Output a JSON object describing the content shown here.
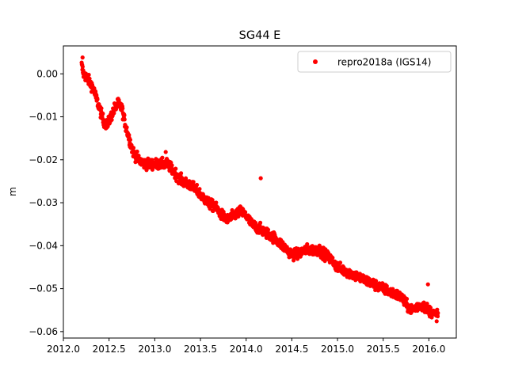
{
  "chart_data": {
    "type": "scatter",
    "title": "SG44 E",
    "xlabel": "",
    "ylabel": "m",
    "xlim": [
      2012.0,
      2016.3
    ],
    "ylim": [
      -0.0615,
      0.0065
    ],
    "xticks": [
      "2012.0",
      "2012.5",
      "2013.0",
      "2013.5",
      "2014.0",
      "2014.5",
      "2015.0",
      "2015.5",
      "2016.0"
    ],
    "xtick_values": [
      2012.0,
      2012.5,
      2013.0,
      2013.5,
      2014.0,
      2014.5,
      2015.0,
      2015.5,
      2016.0
    ],
    "yticks": [
      "0.00",
      "−0.01",
      "−0.02",
      "−0.03",
      "−0.04",
      "−0.05",
      "−0.06"
    ],
    "ytick_values": [
      0.0,
      -0.01,
      -0.02,
      -0.03,
      -0.04,
      -0.05,
      -0.06
    ],
    "grid": false,
    "legend_position": "top-right",
    "series": [
      {
        "name": "repro2018a (IGS14)",
        "color": "#ff0000",
        "marker": "circle",
        "trend_x": [
          2012.2,
          2012.22,
          2012.26,
          2012.32,
          2012.38,
          2012.44,
          2012.48,
          2012.52,
          2012.56,
          2012.6,
          2012.64,
          2012.68,
          2012.72,
          2012.76,
          2012.82,
          2012.9,
          2013.0,
          2013.08,
          2013.14,
          2013.22,
          2013.3,
          2013.4,
          2013.5,
          2013.58,
          2013.66,
          2013.74,
          2013.8,
          2013.86,
          2013.94,
          2014.0,
          2014.06,
          2014.14,
          2014.22,
          2014.3,
          2014.4,
          2014.5,
          2014.56,
          2014.64,
          2014.72,
          2014.8,
          2014.86,
          2014.92,
          2015.0,
          2015.1,
          2015.2,
          2015.3,
          2015.4,
          2015.5,
          2015.6,
          2015.7,
          2015.76,
          2015.82,
          2015.88,
          2015.94,
          2016.0,
          2016.06,
          2016.1
        ],
        "trend_y": [
          0.002,
          0.0,
          -0.001,
          -0.003,
          -0.007,
          -0.011,
          -0.012,
          -0.01,
          -0.008,
          -0.007,
          -0.008,
          -0.012,
          -0.015,
          -0.018,
          -0.02,
          -0.021,
          -0.021,
          -0.021,
          -0.021,
          -0.023,
          -0.025,
          -0.026,
          -0.028,
          -0.03,
          -0.031,
          -0.033,
          -0.034,
          -0.033,
          -0.032,
          -0.033,
          -0.035,
          -0.036,
          -0.037,
          -0.038,
          -0.04,
          -0.042,
          -0.042,
          -0.041,
          -0.041,
          -0.041,
          -0.042,
          -0.043,
          -0.045,
          -0.046,
          -0.047,
          -0.048,
          -0.049,
          -0.05,
          -0.051,
          -0.052,
          -0.054,
          -0.055,
          -0.054,
          -0.054,
          -0.055,
          -0.056,
          -0.056
        ],
        "noise_amplitude": 0.0012,
        "sample_step_years": 0.0027,
        "outliers": [
          {
            "x": 2014.16,
            "y": -0.0243
          },
          {
            "x": 2015.99,
            "y": -0.049
          },
          {
            "x": 2013.12,
            "y": -0.0182
          },
          {
            "x": 2012.6,
            "y": -0.0058
          },
          {
            "x": 2012.21,
            "y": 0.0038
          }
        ]
      }
    ]
  }
}
